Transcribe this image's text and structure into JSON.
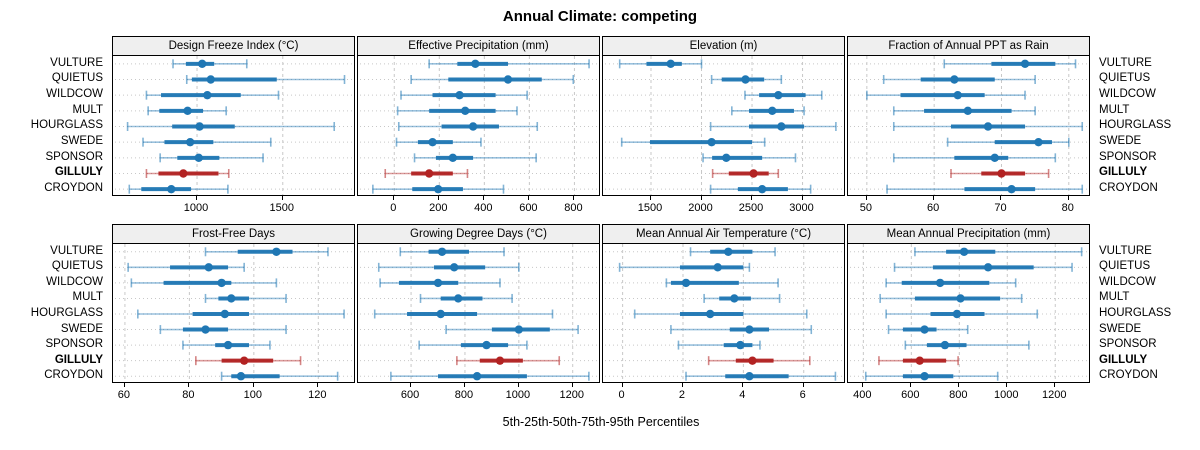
{
  "title": "Annual Climate: competing",
  "xlabel": "5th-25th-50th-75th-95th Percentiles",
  "sites": [
    "VULTURE",
    "QUIETUS",
    "WILDCOW",
    "MULT",
    "HOURGLASS",
    "SWEDE",
    "SPONSOR",
    "GILLULY",
    "CROYDON"
  ],
  "highlight_site": "GILLULY",
  "percentile_labels": [
    "5th",
    "25th",
    "50th",
    "75th",
    "95th"
  ],
  "colors": {
    "normal": "#1f77b4",
    "highlight": "#b22222",
    "grid": "#c8c8c8",
    "strip_bg": "#efefef",
    "border": "#000000"
  },
  "chart_data": [
    {
      "type": "errorbar-dotplot",
      "title": "Design Freeze Index (°C)",
      "row": 0,
      "col": 0,
      "xlim": [
        510,
        1927
      ],
      "ticks": [
        1000,
        1500
      ],
      "series": {
        "VULTURE": [
          860,
          935,
          1030,
          1100,
          1290
        ],
        "QUIETUS": [
          940,
          970,
          1080,
          1465,
          1860
        ],
        "WILDCOW": [
          705,
          790,
          1060,
          1255,
          1475
        ],
        "MULT": [
          715,
          780,
          945,
          1035,
          1170
        ],
        "HOURGLASS": [
          595,
          855,
          1015,
          1220,
          1800
        ],
        "SWEDE": [
          685,
          810,
          960,
          1095,
          1430
        ],
        "SPONSOR": [
          785,
          885,
          1010,
          1130,
          1385
        ],
        "GILLULY": [
          705,
          775,
          920,
          1125,
          1185
        ],
        "CROYDON": [
          605,
          675,
          850,
          965,
          1180
        ]
      }
    },
    {
      "type": "errorbar-dotplot",
      "title": "Effective Precipitation (mm)",
      "row": 0,
      "col": 1,
      "xlim": [
        -161,
        918
      ],
      "ticks": [
        0,
        200,
        400,
        600,
        800
      ],
      "series": {
        "VULTURE": [
          155,
          280,
          360,
          505,
          865
        ],
        "QUIETUS": [
          75,
          240,
          505,
          655,
          795
        ],
        "WILDCOW": [
          30,
          170,
          290,
          450,
          590
        ],
        "MULT": [
          15,
          155,
          315,
          450,
          545
        ],
        "HOURGLASS": [
          20,
          210,
          350,
          465,
          635
        ],
        "SWEDE": [
          10,
          105,
          170,
          260,
          385
        ],
        "SPONSOR": [
          90,
          185,
          260,
          350,
          630
        ],
        "GILLULY": [
          -40,
          75,
          155,
          260,
          325
        ],
        "CROYDON": [
          -95,
          80,
          195,
          305,
          485
        ]
      }
    },
    {
      "type": "errorbar-dotplot",
      "title": "Elevation (m)",
      "row": 0,
      "col": 2,
      "xlim": [
        1025,
        3430
      ],
      "ticks": [
        1500,
        2000,
        2500,
        3000
      ],
      "series": {
        "VULTURE": [
          1190,
          1455,
          1695,
          1805,
          2000
        ],
        "QUIETUS": [
          2100,
          2200,
          2435,
          2620,
          2790
        ],
        "WILDCOW": [
          2430,
          2570,
          2760,
          3030,
          3190
        ],
        "MULT": [
          2300,
          2470,
          2700,
          2915,
          3015
        ],
        "HOURGLASS": [
          2090,
          2470,
          2790,
          3015,
          3330
        ],
        "SWEDE": [
          1210,
          1490,
          2100,
          2500,
          2625
        ],
        "SPONSOR": [
          2015,
          2105,
          2245,
          2600,
          2930
        ],
        "GILLULY": [
          2110,
          2270,
          2515,
          2665,
          2760
        ],
        "CROYDON": [
          2090,
          2360,
          2600,
          2855,
          3080
        ]
      }
    },
    {
      "type": "errorbar-dotplot",
      "title": "Fraction of Annual PPT as Rain",
      "row": 0,
      "col": 3,
      "xlim": [
        47.2,
        83.3
      ],
      "ticks": [
        50,
        60,
        70,
        80
      ],
      "series": {
        "VULTURE": [
          61.5,
          68.5,
          73.5,
          78,
          81
        ],
        "QUIETUS": [
          52.5,
          58,
          63,
          69,
          75
        ],
        "WILDCOW": [
          50,
          55,
          63.5,
          67.5,
          73.5
        ],
        "MULT": [
          54,
          58.5,
          65,
          71.5,
          75
        ],
        "HOURGLASS": [
          54,
          62.5,
          68,
          73.5,
          82
        ],
        "SWEDE": [
          62,
          69,
          75.5,
          77.5,
          80
        ],
        "SPONSOR": [
          54,
          63,
          69,
          71,
          78
        ],
        "GILLULY": [
          62.5,
          67,
          70,
          73.5,
          77
        ],
        "CROYDON": [
          53,
          64.5,
          71.5,
          75,
          82
        ]
      }
    },
    {
      "type": "errorbar-dotplot",
      "title": "Frost-Free Days",
      "row": 1,
      "col": 0,
      "xlim": [
        56.3,
        131.7
      ],
      "ticks": [
        60,
        80,
        100,
        120
      ],
      "series": {
        "VULTURE": [
          85,
          95,
          107,
          112,
          123
        ],
        "QUIETUS": [
          61,
          74,
          86,
          92,
          97
        ],
        "WILDCOW": [
          62,
          72,
          90,
          93,
          107
        ],
        "MULT": [
          85,
          89,
          93,
          98.5,
          110
        ],
        "HOURGLASS": [
          64,
          81,
          91,
          98.5,
          128
        ],
        "SWEDE": [
          71,
          78,
          85,
          92,
          110
        ],
        "SPONSOR": [
          78,
          88,
          92,
          98.5,
          105
        ],
        "GILLULY": [
          82,
          90,
          97,
          106,
          114.5
        ],
        "CROYDON": [
          90,
          93,
          96,
          108,
          126
        ]
      }
    },
    {
      "type": "errorbar-dotplot",
      "title": "Growing Degree Days (°C)",
      "row": 1,
      "col": 1,
      "xlim": [
        403,
        1305
      ],
      "ticks": [
        600,
        800,
        1000,
        1200
      ],
      "series": {
        "VULTURE": [
          560,
          665,
          715,
          815,
          945
        ],
        "QUIETUS": [
          480,
          685,
          760,
          875,
          1000
        ],
        "WILDCOW": [
          485,
          555,
          700,
          775,
          930
        ],
        "MULT": [
          635,
          710,
          775,
          865,
          975
        ],
        "HOURGLASS": [
          465,
          585,
          710,
          845,
          1125
        ],
        "SWEDE": [
          730,
          900,
          1000,
          1115,
          1220
        ],
        "SPONSOR": [
          630,
          785,
          880,
          960,
          1030
        ],
        "GILLULY": [
          770,
          855,
          930,
          1015,
          1150
        ],
        "CROYDON": [
          525,
          700,
          845,
          1030,
          1260
        ]
      }
    },
    {
      "type": "errorbar-dotplot",
      "title": "Mean Annual Air Temperature (°C)",
      "row": 1,
      "col": 2,
      "xlim": [
        -0.65,
        7.4
      ],
      "ticks": [
        0,
        2,
        4,
        6
      ],
      "series": {
        "VULTURE": [
          2.25,
          2.9,
          3.5,
          4.3,
          5.05
        ],
        "QUIETUS": [
          -0.1,
          1.9,
          3.15,
          4.0,
          4.2
        ],
        "WILDCOW": [
          1.45,
          1.6,
          2.1,
          3.85,
          5.15
        ],
        "MULT": [
          2.7,
          3.2,
          3.7,
          4.25,
          5.2
        ],
        "HOURGLASS": [
          0.4,
          1.9,
          2.9,
          4.0,
          6.1
        ],
        "SWEDE": [
          1.6,
          3.55,
          4.2,
          4.85,
          6.25
        ],
        "SPONSOR": [
          1.85,
          3.35,
          3.9,
          4.3,
          4.55
        ],
        "GILLULY": [
          2.85,
          3.75,
          4.3,
          5.0,
          6.2
        ],
        "CROYDON": [
          2.1,
          3.4,
          4.2,
          5.5,
          7.05
        ]
      }
    },
    {
      "type": "errorbar-dotplot",
      "title": "Mean Annual Precipitation (mm)",
      "row": 1,
      "col": 3,
      "xlim": [
        336,
        1349
      ],
      "ticks": [
        400,
        600,
        800,
        1000,
        1200
      ],
      "series": {
        "VULTURE": [
          615,
          745,
          820,
          950,
          1310
        ],
        "QUIETUS": [
          530,
          690,
          920,
          1110,
          1270
        ],
        "WILDCOW": [
          495,
          560,
          720,
          925,
          1035
        ],
        "MULT": [
          470,
          615,
          805,
          970,
          1060
        ],
        "HOURGLASS": [
          495,
          680,
          790,
          905,
          1125
        ],
        "SWEDE": [
          505,
          565,
          655,
          705,
          835
        ],
        "SPONSOR": [
          575,
          665,
          740,
          830,
          1090
        ],
        "GILLULY": [
          465,
          565,
          635,
          745,
          795
        ],
        "CROYDON": [
          410,
          565,
          655,
          775,
          960
        ]
      }
    }
  ]
}
